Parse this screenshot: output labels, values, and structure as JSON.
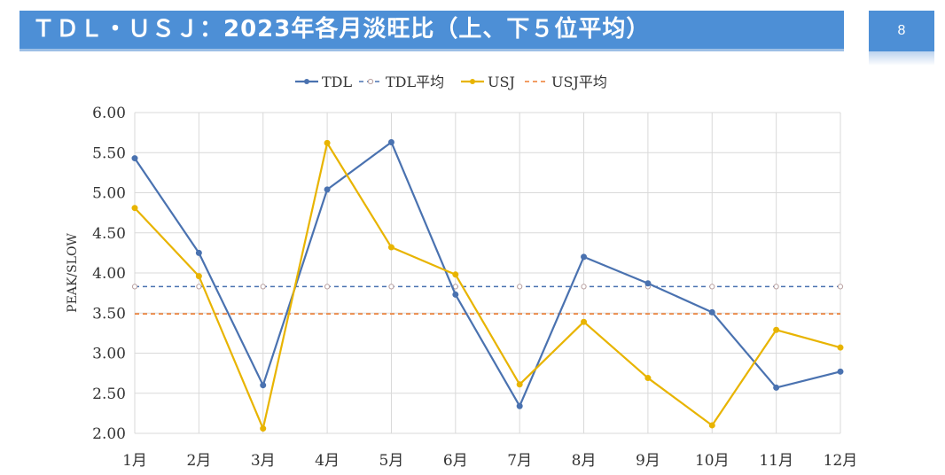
{
  "header": {
    "title": "ＴＤＬ・ＵＳＪ：2023年各月淡旺比（上、下５位平均）",
    "page_number": "8"
  },
  "chart_data": {
    "type": "line",
    "title": "",
    "xlabel": "",
    "ylabel": "PEAK/SLOW",
    "categories": [
      "1月",
      "2月",
      "3月",
      "4月",
      "5月",
      "6月",
      "7月",
      "8月",
      "9月",
      "10月",
      "11月",
      "12月"
    ],
    "ylim": [
      2.0,
      6.0
    ],
    "yticks": [
      "2.00",
      "2.50",
      "3.00",
      "3.50",
      "4.00",
      "4.50",
      "5.00",
      "5.50",
      "6.00"
    ],
    "grid": true,
    "legend_position": "top",
    "series": [
      {
        "name": "TDL",
        "color": "#4a72b0",
        "style": "solid",
        "marker": true,
        "values": [
          5.43,
          4.25,
          2.6,
          5.04,
          5.63,
          3.73,
          2.34,
          4.2,
          3.87,
          3.51,
          2.57,
          2.77
        ]
      },
      {
        "name": "TDL平均",
        "color": "#4a72b0",
        "style": "dashed",
        "marker": "hollow",
        "values": [
          3.83,
          3.83,
          3.83,
          3.83,
          3.83,
          3.83,
          3.83,
          3.83,
          3.83,
          3.83,
          3.83,
          3.83
        ]
      },
      {
        "name": "USJ",
        "color": "#e8b400",
        "style": "solid",
        "marker": true,
        "values": [
          4.81,
          3.96,
          2.06,
          5.62,
          4.32,
          3.98,
          2.61,
          3.39,
          2.69,
          2.1,
          3.29,
          3.07
        ]
      },
      {
        "name": "USJ平均",
        "color": "#ed7d31",
        "style": "dashed",
        "marker": false,
        "values": [
          3.49,
          3.49,
          3.49,
          3.49,
          3.49,
          3.49,
          3.49,
          3.49,
          3.49,
          3.49,
          3.49,
          3.49
        ]
      }
    ]
  }
}
